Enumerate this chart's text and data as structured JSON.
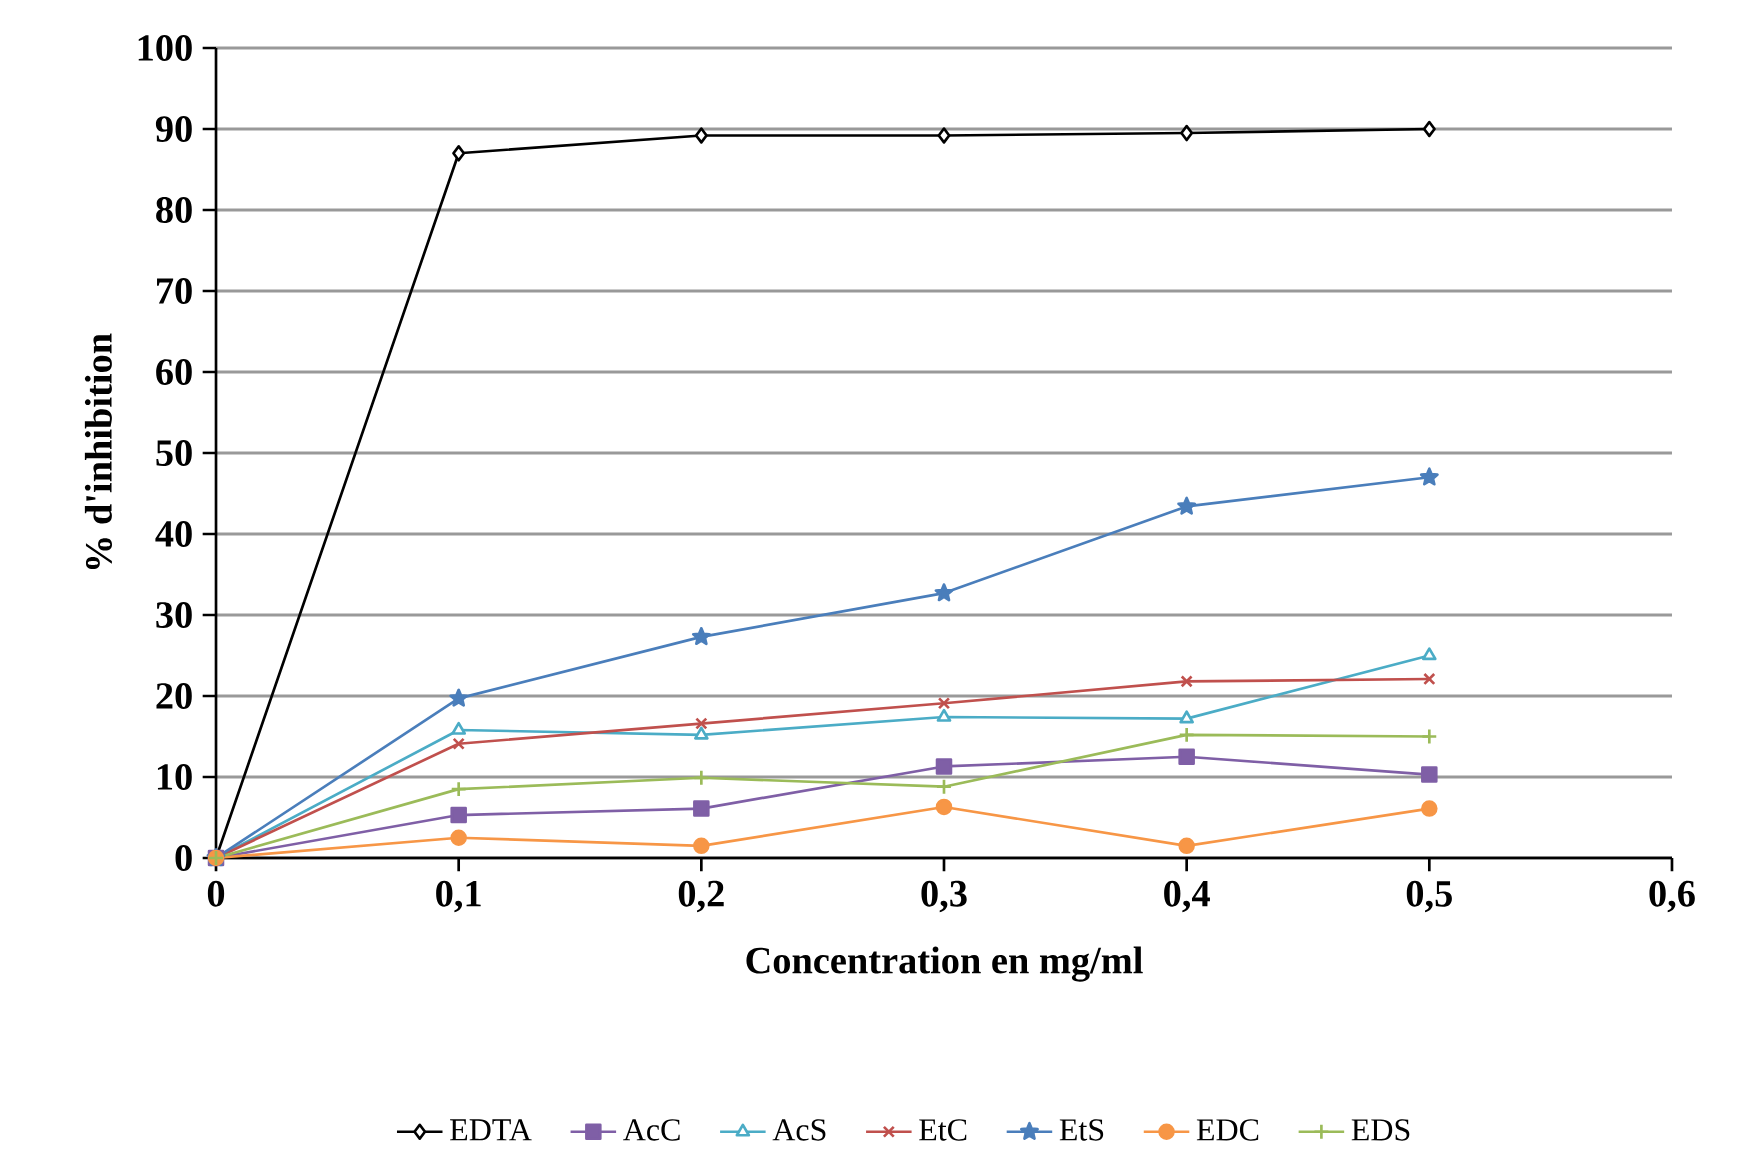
{
  "chart_data": {
    "type": "line",
    "xlabel": "Concentration en mg/ml",
    "ylabel": "% d'inhibition",
    "x": [
      0,
      0.1,
      0.2,
      0.3,
      0.4,
      0.5
    ],
    "series": [
      {
        "name": "EDTA",
        "color": "#000000",
        "marker": "diamond",
        "values": [
          0,
          87,
          89.2,
          89.2,
          89.5,
          90
        ]
      },
      {
        "name": "AcC",
        "color": "#7f5fa6",
        "marker": "square",
        "values": [
          0,
          5.3,
          6.1,
          11.3,
          12.5,
          10.3
        ]
      },
      {
        "name": "AcS",
        "color": "#4bacc6",
        "marker": "triangle",
        "values": [
          0,
          15.8,
          15.2,
          17.4,
          17.2,
          25
        ]
      },
      {
        "name": "EtC",
        "color": "#c0504d",
        "marker": "cross",
        "values": [
          0,
          14.1,
          16.6,
          19.1,
          21.8,
          22.1
        ]
      },
      {
        "name": "EtS",
        "color": "#4a7ebb",
        "marker": "star",
        "values": [
          0,
          19.7,
          27.3,
          32.7,
          43.4,
          47
        ]
      },
      {
        "name": "EDC",
        "color": "#f79646",
        "marker": "circle",
        "values": [
          0,
          2.5,
          1.5,
          6.3,
          1.5,
          6.1
        ]
      },
      {
        "name": "EDS",
        "color": "#9bbb59",
        "marker": "plus",
        "values": [
          0,
          8.5,
          9.9,
          8.8,
          15.2,
          15
        ]
      }
    ],
    "xlim": [
      0,
      0.6
    ],
    "xticks": [
      0,
      {
        "value": 0.1,
        "label": "0,1"
      },
      {
        "value": 0.2,
        "label": "0,2"
      },
      {
        "value": 0.3,
        "label": "0,3"
      },
      {
        "value": 0.4,
        "label": "0,4"
      },
      {
        "value": 0.5,
        "label": "0,5"
      },
      {
        "value": 0.6,
        "label": "0,6"
      }
    ],
    "ylim": [
      0,
      100
    ],
    "yticks": [
      0,
      10,
      20,
      30,
      40,
      50,
      60,
      70,
      80,
      90,
      100
    ],
    "grid": "y",
    "legend": "bottom",
    "line_style": "solid"
  }
}
